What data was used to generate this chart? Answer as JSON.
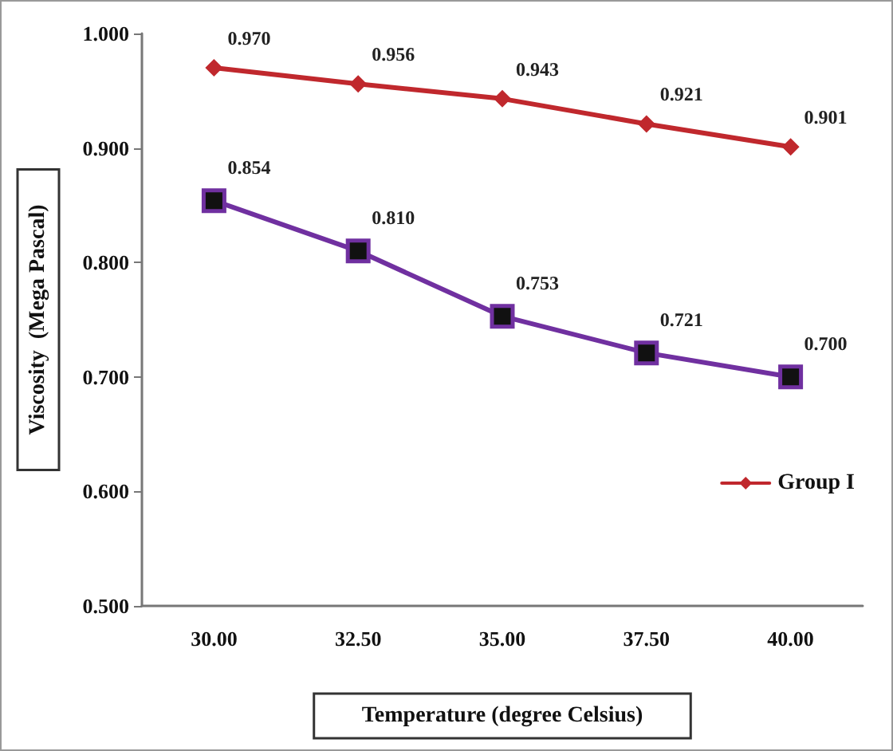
{
  "chart_data": {
    "type": "line",
    "xlabel": "Temperature (degree Celsius)",
    "ylabel": "Viscosity  (Mega Pascal)",
    "categories": [
      "30.00",
      "32.50",
      "35.00",
      "37.50",
      "40.00"
    ],
    "series": [
      {
        "name": "Group I",
        "color": "#c0282d",
        "marker": "diamond",
        "values": [
          0.97,
          0.956,
          0.943,
          0.921,
          0.901
        ],
        "value_labels": [
          "0.970",
          "0.956",
          "0.943",
          "0.921",
          "0.901"
        ]
      },
      {
        "color": "#7030a0",
        "marker": "square",
        "values": [
          0.854,
          0.81,
          0.753,
          0.721,
          0.7
        ],
        "value_labels": [
          "0.854",
          "0.810",
          "0.753",
          "0.721",
          "0.700"
        ]
      }
    ],
    "ylim": [
      0.5,
      1.0
    ],
    "yticks": [
      {
        "value": 0.5,
        "label": "0.500"
      },
      {
        "value": 0.6,
        "label": "0.600"
      },
      {
        "value": 0.7,
        "label": "0.700"
      },
      {
        "value": 0.8,
        "label": "0.800"
      },
      {
        "value": 0.9,
        "label": "0.900"
      },
      {
        "value": 1.0,
        "label": "1.000"
      }
    ],
    "grid": false,
    "legend": "right",
    "line_style": "solid"
  }
}
